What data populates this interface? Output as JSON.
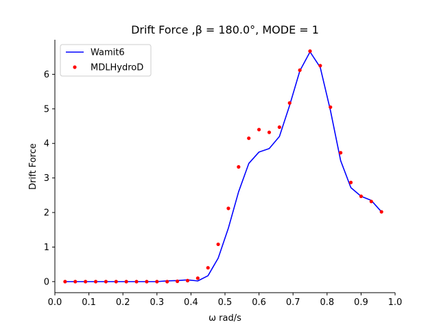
{
  "chart_data": {
    "type": "line",
    "title": "Drift Force ,β = 180.0°, MODE = 1",
    "xlabel": "ω rad/s",
    "ylabel": "Drift Force",
    "xlim": [
      0.0,
      1.0
    ],
    "ylim": [
      -0.32,
      7.0
    ],
    "xticks": [
      0.0,
      0.1,
      0.2,
      0.3,
      0.4,
      0.5,
      0.6,
      0.7,
      0.8,
      0.9,
      1.0
    ],
    "xtick_labels": [
      "0.0",
      "0.1",
      "0.2",
      "0.3",
      "0.4",
      "0.5",
      "0.6",
      "0.7",
      "0.8",
      "0.9",
      "1.0"
    ],
    "yticks": [
      0,
      1,
      2,
      3,
      4,
      5,
      6
    ],
    "ytick_labels": [
      "0",
      "1",
      "2",
      "3",
      "4",
      "5",
      "6"
    ],
    "grid": false,
    "legend": "top-left",
    "series": [
      {
        "name": "Wamit6",
        "style": "line",
        "color": "#0000ff",
        "x": [
          0.03,
          0.06,
          0.09,
          0.12,
          0.15,
          0.18,
          0.21,
          0.24,
          0.27,
          0.3,
          0.33,
          0.36,
          0.39,
          0.42,
          0.45,
          0.48,
          0.51,
          0.54,
          0.57,
          0.6,
          0.63,
          0.66,
          0.69,
          0.72,
          0.75,
          0.78,
          0.81,
          0.84,
          0.87,
          0.9,
          0.93,
          0.96
        ],
        "y": [
          0.0,
          0.0,
          0.0,
          0.0,
          0.0,
          0.0,
          0.0,
          0.0,
          0.0,
          0.0,
          0.02,
          0.03,
          0.05,
          0.02,
          0.17,
          0.68,
          1.55,
          2.6,
          3.42,
          3.75,
          3.85,
          4.2,
          5.1,
          6.1,
          6.65,
          6.2,
          4.95,
          3.5,
          2.72,
          2.47,
          2.35,
          2.02
        ]
      },
      {
        "name": "MDLHydroD",
        "style": "scatter",
        "color": "#ff0000",
        "x": [
          0.03,
          0.06,
          0.09,
          0.12,
          0.15,
          0.18,
          0.21,
          0.24,
          0.27,
          0.3,
          0.33,
          0.36,
          0.39,
          0.42,
          0.45,
          0.48,
          0.51,
          0.54,
          0.57,
          0.6,
          0.63,
          0.66,
          0.69,
          0.72,
          0.75,
          0.78,
          0.81,
          0.84,
          0.87,
          0.9,
          0.93,
          0.96
        ],
        "y": [
          0.0,
          0.0,
          0.0,
          0.0,
          0.0,
          0.0,
          0.0,
          0.0,
          0.0,
          0.0,
          0.0,
          0.01,
          0.03,
          0.1,
          0.4,
          1.08,
          2.12,
          3.32,
          4.15,
          4.4,
          4.32,
          4.47,
          5.17,
          6.12,
          6.67,
          6.25,
          5.05,
          3.73,
          2.87,
          2.47,
          2.32,
          2.02
        ]
      }
    ]
  }
}
